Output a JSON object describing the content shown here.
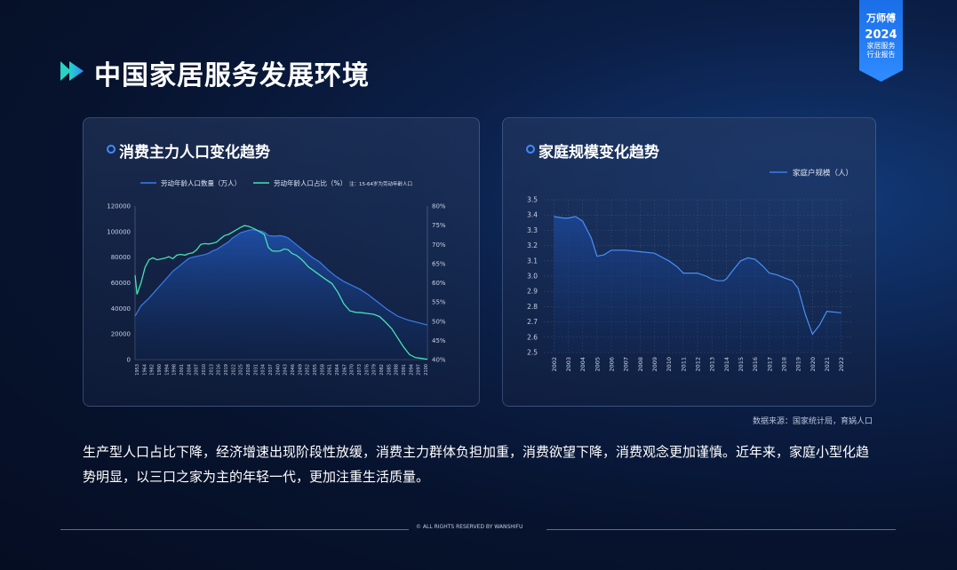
{
  "page": {
    "title": "中国家居服务发展环境",
    "badge": {
      "brand": "万师傅",
      "year": "2024",
      "line1": "家居服务",
      "line2": "行业报告"
    },
    "source": "数据来源：国家统计局，育娲人口",
    "body": "生产型人口占比下降，经济增速出现阶段性放缓，消费主力群体负担加重，消费欲望下降，消费观念更加谨慎。近年来，家庭小型化趋势明显，以三口之家为主的年轻一代，更加注重生活质量。",
    "footer": "© ALL RIGHTS RESERVED BY WANSHIFU",
    "colors": {
      "accent": "#3d8bff",
      "series_blue": "#3b7dea",
      "series_green": "#49e0b2"
    }
  },
  "chart_data": [
    {
      "type": "area",
      "title": "消费主力人口变化趋势",
      "legend": [
        {
          "name": "劳动年龄人口数量（万人）",
          "color": "#3b7dea"
        },
        {
          "name": "劳动年龄人口占比（%）",
          "color": "#49e0b2"
        }
      ],
      "legend_note": "注：15-64岁为劳动年龄人口",
      "legend_position": "top",
      "x_ticks": [
        "1953",
        "1964",
        "1982",
        "1990",
        "1994",
        "1998",
        "2001",
        "2004",
        "2007",
        "2010",
        "2013",
        "2016",
        "2019",
        "2022",
        "2025",
        "2028",
        "2031",
        "2034",
        "2037",
        "2040",
        "2043",
        "2046",
        "2049",
        "2052",
        "2055",
        "2058",
        "2061",
        "2064",
        "2067",
        "2070",
        "2073",
        "2076",
        "2079",
        "2082",
        "2085",
        "2088",
        "2091",
        "2094",
        "2097",
        "2100"
      ],
      "y_ticks": [
        "0",
        "20000",
        "40000",
        "60000",
        "80000",
        "100000",
        "120000"
      ],
      "y2_ticks": [
        "40%",
        "45%",
        "50%",
        "55%",
        "60%",
        "65%",
        "70%",
        "75%",
        "80%"
      ],
      "ylim": [
        0,
        120000
      ],
      "y2lim": [
        40,
        80
      ],
      "series": [
        {
          "name": "劳动年龄人口数量（万人）",
          "axis": "left",
          "x": [
            1953,
            1956,
            1960,
            1964,
            1968,
            1972,
            1976,
            1980,
            1982,
            1985,
            1988,
            1990,
            1992,
            1994,
            1996,
            1998,
            2000,
            2002,
            2004,
            2006,
            2008,
            2010,
            2012,
            2014,
            2016,
            2018,
            2020,
            2022,
            2024,
            2026,
            2028,
            2030,
            2034,
            2038,
            2042,
            2046,
            2050,
            2054,
            2058,
            2062,
            2066,
            2070,
            2075,
            2080,
            2085,
            2090,
            2095,
            2100
          ],
          "values": [
            34000,
            42000,
            48000,
            55000,
            62000,
            69000,
            74000,
            79000,
            80000,
            81000,
            82000,
            83000,
            85000,
            86000,
            88000,
            90000,
            92000,
            95000,
            97000,
            99000,
            100000,
            101000,
            101500,
            101000,
            100500,
            99500,
            97000,
            96500,
            96500,
            96800,
            96200,
            95000,
            90000,
            85000,
            80000,
            76000,
            70000,
            65000,
            61000,
            58000,
            55000,
            51000,
            45000,
            39000,
            34000,
            31000,
            29000,
            27000
          ]
        },
        {
          "name": "劳动年龄人口占比（%）",
          "axis": "right",
          "x": [
            1953,
            1954,
            1956,
            1958,
            1960,
            1962,
            1964,
            1966,
            1968,
            1970,
            1972,
            1974,
            1976,
            1978,
            1980,
            1982,
            1984,
            1986,
            1988,
            1990,
            1992,
            1994,
            1996,
            1998,
            2000,
            2002,
            2004,
            2006,
            2008,
            2010,
            2012,
            2014,
            2016,
            2018,
            2020,
            2022,
            2024,
            2026,
            2028,
            2030,
            2032,
            2034,
            2036,
            2038,
            2040,
            2044,
            2048,
            2052,
            2055,
            2058,
            2061,
            2064,
            2067,
            2070,
            2073,
            2076,
            2079,
            2082,
            2085,
            2088,
            2091,
            2094,
            2097,
            2100
          ],
          "values": [
            62,
            57,
            60,
            64,
            66,
            66.5,
            66,
            66.2,
            66.4,
            66.8,
            66.3,
            67.2,
            67.4,
            67.2,
            67.6,
            67.8,
            68.6,
            70,
            70.2,
            70.1,
            70.3,
            70.6,
            71.5,
            72.3,
            72.6,
            73.2,
            73.8,
            74.4,
            74.9,
            74.7,
            74.3,
            73.8,
            73.2,
            72.6,
            69.2,
            68.3,
            68.2,
            68.3,
            68.8,
            68.6,
            67.6,
            67.2,
            66.4,
            65.4,
            64.2,
            62.7,
            61.2,
            59.8,
            57.5,
            54.5,
            52.7,
            52.3,
            52.2,
            52.0,
            51.8,
            51.2,
            49.7,
            48.1,
            45.7,
            43.3,
            41.3,
            40.5,
            40.3,
            40.1
          ]
        }
      ]
    },
    {
      "type": "area",
      "title": "家庭规模变化趋势",
      "legend": [
        {
          "name": "家庭户规模（人）",
          "color": "#3b7dea"
        }
      ],
      "legend_position": "top-right",
      "categories": [
        "2002",
        "2003",
        "2004",
        "2005",
        "2006",
        "2007",
        "2008",
        "2009",
        "2010",
        "2011",
        "2012",
        "2013",
        "2014",
        "2015",
        "2016",
        "2017",
        "2018",
        "2019",
        "2020",
        "2021",
        "2022"
      ],
      "y_ticks": [
        "2.5",
        "2.6",
        "2.7",
        "2.8",
        "2.9",
        "3.0",
        "3.1",
        "3.2",
        "3.3",
        "3.4",
        "3.5"
      ],
      "ylim": [
        2.5,
        3.5
      ],
      "grid": true,
      "series": [
        {
          "name": "家庭户规模（人）",
          "x": [
            2002,
            2002.7,
            2003,
            2003.5,
            2004,
            2004.6,
            2005,
            2005.5,
            2006,
            2006.5,
            2007,
            2008,
            2009,
            2009.6,
            2010,
            2010.6,
            2011,
            2012,
            2012.6,
            2013,
            2013.4,
            2013.8,
            2014,
            2014.4,
            2015,
            2015.5,
            2016,
            2016.5,
            2017,
            2017.5,
            2018,
            2018.6,
            2019,
            2019.5,
            2020,
            2020.5,
            2021,
            2022
          ],
          "values": [
            3.39,
            3.38,
            3.38,
            3.39,
            3.36,
            3.25,
            3.13,
            3.14,
            3.17,
            3.17,
            3.17,
            3.16,
            3.15,
            3.12,
            3.1,
            3.06,
            3.02,
            3.02,
            3.0,
            2.98,
            2.97,
            2.97,
            2.98,
            3.03,
            3.1,
            3.12,
            3.11,
            3.07,
            3.02,
            3.01,
            2.99,
            2.97,
            2.92,
            2.75,
            2.62,
            2.68,
            2.77,
            2.76
          ]
        }
      ]
    }
  ]
}
